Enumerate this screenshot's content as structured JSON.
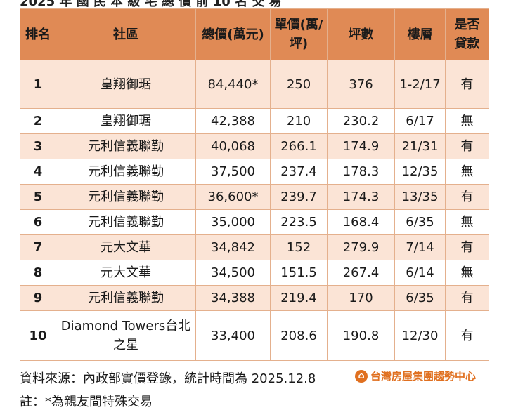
{
  "title_partial": "2025 年 國 民 本 級 宅 總 價 前 10 名 交 易",
  "header": {
    "rank": "排名",
    "community": "社區",
    "total_price": "總價(萬元)",
    "unit_price": "單價(萬/坪)",
    "area": "坪數",
    "floor": "樓層",
    "loan": "是否貸款"
  },
  "rows": [
    {
      "rank": "1",
      "community": "皇翔御琚",
      "total": "84,440*",
      "unit": "250",
      "area": "376",
      "floor": "1-2/17",
      "loan": "有"
    },
    {
      "rank": "2",
      "community": "皇翔御琚",
      "total": "42,388",
      "unit": "210",
      "area": "230.2",
      "floor": "6/17",
      "loan": "無"
    },
    {
      "rank": "3",
      "community": "元利信義聯勤",
      "total": "40,068",
      "unit": "266.1",
      "area": "174.9",
      "floor": "21/31",
      "loan": "有"
    },
    {
      "rank": "4",
      "community": "元利信義聯勤",
      "total": "37,500",
      "unit": "237.4",
      "area": "178.3",
      "floor": "12/35",
      "loan": "無"
    },
    {
      "rank": "5",
      "community": "元利信義聯勤",
      "total": "36,600*",
      "unit": "239.7",
      "area": "174.3",
      "floor": "13/35",
      "loan": "有"
    },
    {
      "rank": "6",
      "community": "元利信義聯勤",
      "total": "35,000",
      "unit": "223.5",
      "area": "168.4",
      "floor": "6/35",
      "loan": "無"
    },
    {
      "rank": "7",
      "community": "元大文華",
      "total": "34,842",
      "unit": "152",
      "area": "279.9",
      "floor": "7/14",
      "loan": "有"
    },
    {
      "rank": "8",
      "community": "元大文華",
      "total": "34,500",
      "unit": "151.5",
      "area": "267.4",
      "floor": "6/14",
      "loan": "無"
    },
    {
      "rank": "9",
      "community": "元利信義聯勤",
      "total": "34,388",
      "unit": "219.4",
      "area": "170",
      "floor": "6/35",
      "loan": "有"
    },
    {
      "rank": "10",
      "community": "Diamond Towers台北之星",
      "total": "33,400",
      "unit": "208.6",
      "area": "190.8",
      "floor": "12/30",
      "loan": "有"
    }
  ],
  "footer": {
    "source": "資料來源：內政部實價登錄，統計時間為 2025.12.8",
    "logo_text": "台灣房屋集團趨勢中心",
    "note": "註：*為親友間特殊交易"
  }
}
